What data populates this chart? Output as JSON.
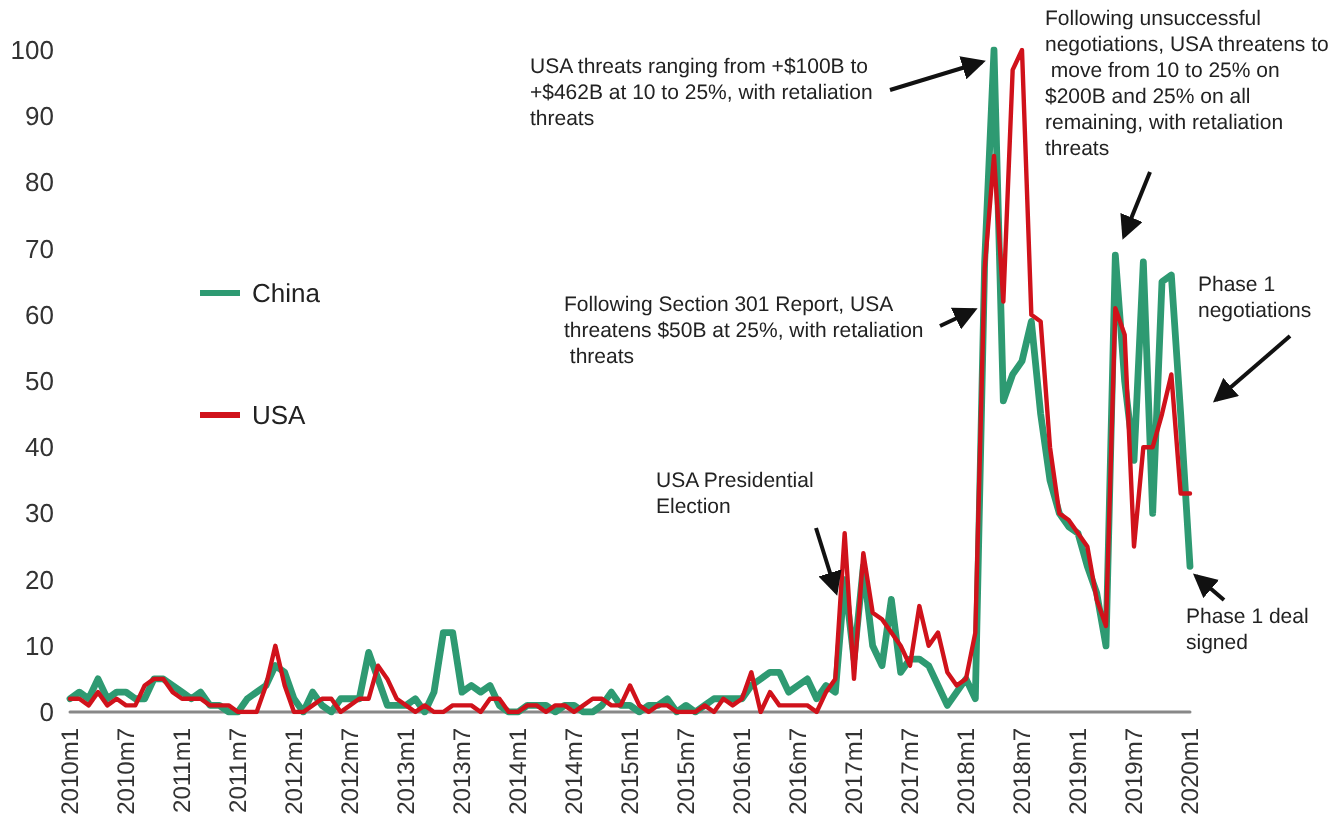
{
  "chart_data": {
    "type": "line",
    "categories": [
      "2010m1",
      null,
      null,
      null,
      null,
      null,
      "2010m7",
      null,
      null,
      null,
      null,
      null,
      "2011m1",
      null,
      null,
      null,
      null,
      null,
      "2011m7",
      null,
      null,
      null,
      null,
      null,
      "2012m1",
      null,
      null,
      null,
      null,
      null,
      "2012m7",
      null,
      null,
      null,
      null,
      null,
      "2013m1",
      null,
      null,
      null,
      null,
      null,
      "2013m7",
      null,
      null,
      null,
      null,
      null,
      "2014m1",
      null,
      null,
      null,
      null,
      null,
      "2014m7",
      null,
      null,
      null,
      null,
      null,
      "2015m1",
      null,
      null,
      null,
      null,
      null,
      "2015m7",
      null,
      null,
      null,
      null,
      null,
      "2016m1",
      null,
      null,
      null,
      null,
      null,
      "2016m7",
      null,
      null,
      null,
      null,
      null,
      "2017m1",
      null,
      null,
      null,
      null,
      null,
      "2017m7",
      null,
      null,
      null,
      null,
      null,
      "2018m1",
      null,
      null,
      null,
      null,
      null,
      "2018m7",
      null,
      null,
      null,
      null,
      null,
      "2019m1",
      null,
      null,
      null,
      null,
      null,
      "2019m7",
      null,
      null,
      null,
      null,
      null,
      "2020m1"
    ],
    "series": [
      {
        "name": "China",
        "color": "#2e9a72",
        "values": [
          2,
          3,
          2,
          5,
          2,
          3,
          3,
          2,
          2,
          5,
          5,
          4,
          3,
          2,
          3,
          1,
          1,
          0,
          0,
          2,
          3,
          4,
          7,
          6,
          2,
          0,
          3,
          1,
          0,
          2,
          2,
          2,
          9,
          5,
          1,
          1,
          1,
          2,
          0,
          3,
          12,
          12,
          3,
          4,
          3,
          4,
          1,
          0,
          0,
          1,
          1,
          1,
          0,
          1,
          1,
          0,
          0,
          1,
          3,
          1,
          1,
          0,
          1,
          1,
          2,
          0,
          1,
          0,
          1,
          2,
          2,
          2,
          2,
          4,
          5,
          6,
          6,
          3,
          4,
          5,
          2,
          4,
          3,
          20,
          8,
          22,
          10,
          7,
          17,
          6,
          8,
          8,
          7,
          4,
          1,
          3,
          5,
          2,
          68,
          100,
          47,
          51,
          53,
          59,
          45,
          35,
          30,
          28,
          27,
          22,
          18,
          10,
          69,
          50,
          38,
          68,
          30,
          65,
          66,
          45,
          22
        ]
      },
      {
        "name": "USA",
        "color": "#d0121b",
        "values": [
          2,
          2,
          1,
          3,
          1,
          2,
          1,
          1,
          4,
          5,
          5,
          3,
          2,
          2,
          2,
          1,
          1,
          1,
          0,
          0,
          0,
          4,
          10,
          4,
          0,
          0,
          1,
          2,
          2,
          0,
          1,
          2,
          2,
          7,
          5,
          2,
          1,
          0,
          1,
          0,
          0,
          1,
          1,
          1,
          0,
          2,
          2,
          0,
          0,
          1,
          1,
          0,
          1,
          1,
          0,
          1,
          2,
          2,
          1,
          1,
          4,
          1,
          0,
          1,
          1,
          0,
          0,
          0,
          1,
          0,
          2,
          1,
          2,
          6,
          0,
          3,
          1,
          1,
          1,
          1,
          0,
          3,
          5,
          27,
          5,
          24,
          15,
          14,
          12,
          10,
          7,
          16,
          10,
          12,
          6,
          4,
          5,
          12,
          67,
          84,
          62,
          97,
          100,
          60,
          59,
          40,
          30,
          29,
          27,
          25,
          17,
          13,
          61,
          57,
          25,
          40,
          40,
          45,
          51,
          33,
          33
        ]
      }
    ],
    "ylim": [
      0,
      100
    ],
    "yticks": [
      0,
      10,
      20,
      30,
      40,
      50,
      60,
      70,
      80,
      90,
      100
    ],
    "legend": "left",
    "marker": "none",
    "line_style": "solid",
    "annotations": [
      "USA threats ranging from +$100B to +$462B at 10 to 25%, with retaliation threats",
      "Following unsuccessful negotiations, USA threatens to move from 10 to 25% on $200B and 25% on all remaining, with retaliation threats",
      "Following Section 301 Report, USA threatens $50B at 25%, with retaliation threats",
      "Phase 1 negotiations",
      "USA Presidential Election",
      "Phase 1 deal signed"
    ]
  }
}
